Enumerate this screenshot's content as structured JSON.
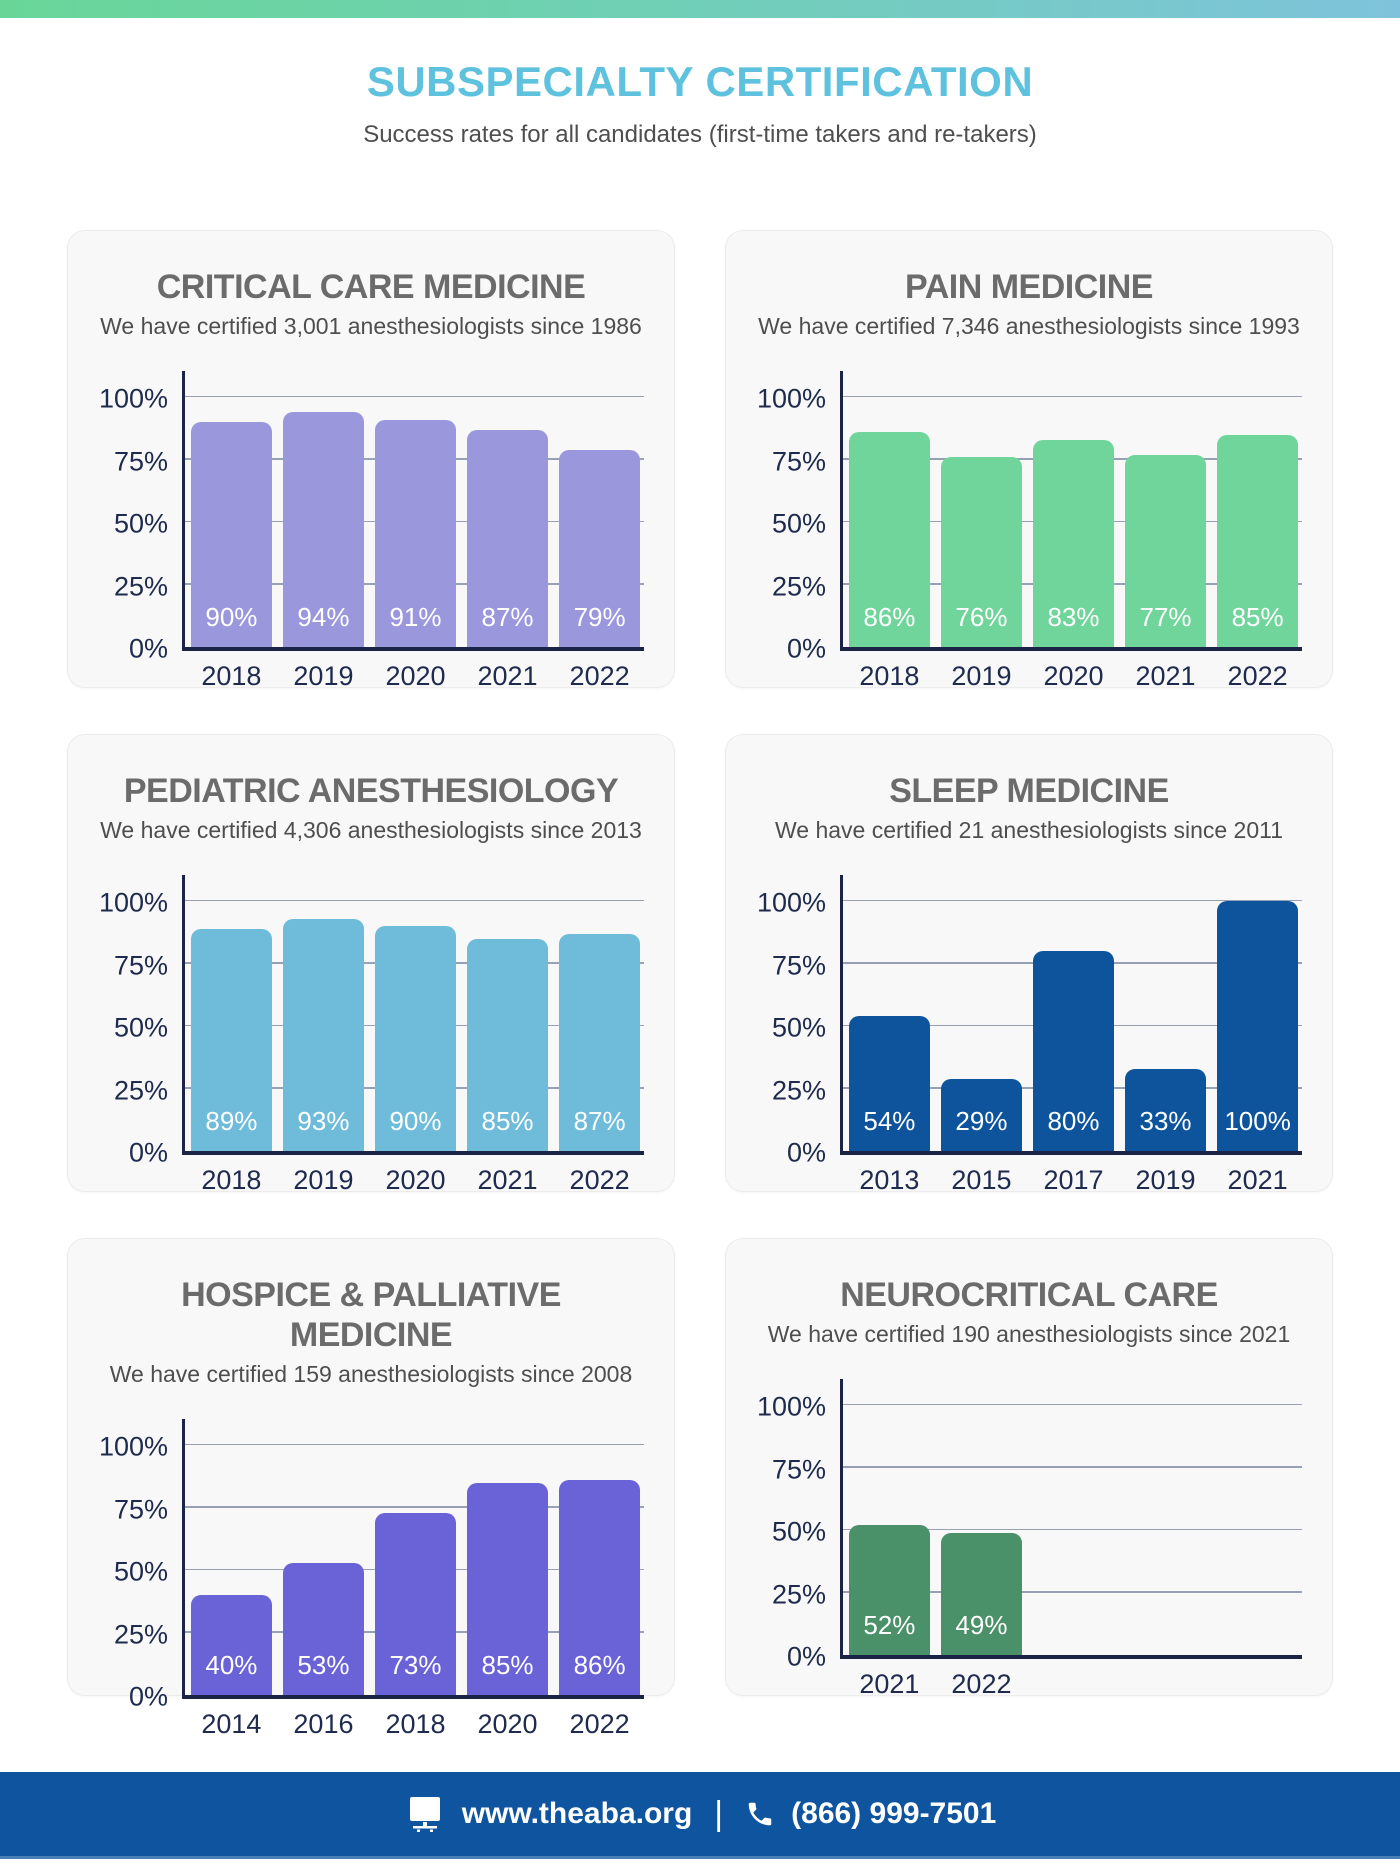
{
  "header": {
    "title": "SUBSPECIALTY CERTIFICATION",
    "subtitle": "Success rates for all candidates (first-time takers and re-takers)"
  },
  "chart_data": [
    {
      "type": "bar",
      "title": "CRITICAL CARE MEDICINE",
      "subtitle": "We have certified 3,001 anesthesiologists since 1986",
      "categories": [
        "2018",
        "2019",
        "2020",
        "2021",
        "2022"
      ],
      "values": [
        90,
        94,
        91,
        87,
        79
      ],
      "data_labels": [
        "90%",
        "94%",
        "91%",
        "87%",
        "79%"
      ],
      "bar_color": "#9b97dd",
      "y_ticks": [
        "100%",
        "75%",
        "50%",
        "25%",
        "0%"
      ],
      "ylim": [
        0,
        100
      ],
      "xlabel": "",
      "ylabel": "",
      "grid": true,
      "slots": 5
    },
    {
      "type": "bar",
      "title": "PAIN MEDICINE",
      "subtitle": "We have certified 7,346 anesthesiologists since 1993",
      "categories": [
        "2018",
        "2019",
        "2020",
        "2021",
        "2022"
      ],
      "values": [
        86,
        76,
        83,
        77,
        85
      ],
      "data_labels": [
        "86%",
        "76%",
        "83%",
        "77%",
        "85%"
      ],
      "bar_color": "#6fd59a",
      "y_ticks": [
        "100%",
        "75%",
        "50%",
        "25%",
        "0%"
      ],
      "ylim": [
        0,
        100
      ],
      "xlabel": "",
      "ylabel": "",
      "grid": true,
      "slots": 5
    },
    {
      "type": "bar",
      "title": "PEDIATRIC ANESTHESIOLOGY",
      "subtitle": "We have certified 4,306 anesthesiologists since 2013",
      "categories": [
        "2018",
        "2019",
        "2020",
        "2021",
        "2022"
      ],
      "values": [
        89,
        93,
        90,
        85,
        87
      ],
      "data_labels": [
        "89%",
        "93%",
        "90%",
        "85%",
        "87%"
      ],
      "bar_color": "#6ebcda",
      "y_ticks": [
        "100%",
        "75%",
        "50%",
        "25%",
        "0%"
      ],
      "ylim": [
        0,
        100
      ],
      "xlabel": "",
      "ylabel": "",
      "grid": true,
      "slots": 5
    },
    {
      "type": "bar",
      "title": "SLEEP MEDICINE",
      "subtitle": "We have certified 21 anesthesiologists since 2011",
      "categories": [
        "2013",
        "2015",
        "2017",
        "2019",
        "2021"
      ],
      "values": [
        54,
        29,
        80,
        33,
        100
      ],
      "data_labels": [
        "54%",
        "29%",
        "80%",
        "33%",
        "100%"
      ],
      "bar_color": "#0d549d",
      "y_ticks": [
        "100%",
        "75%",
        "50%",
        "25%",
        "0%"
      ],
      "ylim": [
        0,
        100
      ],
      "xlabel": "",
      "ylabel": "",
      "grid": true,
      "slots": 5
    },
    {
      "type": "bar",
      "title": "HOSPICE & PALLIATIVE MEDICINE",
      "subtitle": "We have certified 159 anesthesiologists since 2008",
      "categories": [
        "2014",
        "2016",
        "2018",
        "2020",
        "2022"
      ],
      "values": [
        40,
        53,
        73,
        85,
        86
      ],
      "data_labels": [
        "40%",
        "53%",
        "73%",
        "85%",
        "86%"
      ],
      "bar_color": "#6a62d7",
      "y_ticks": [
        "100%",
        "75%",
        "50%",
        "25%",
        "0%"
      ],
      "ylim": [
        0,
        100
      ],
      "xlabel": "",
      "ylabel": "",
      "grid": true,
      "slots": 5
    },
    {
      "type": "bar",
      "title": "NEUROCRITICAL CARE",
      "subtitle": "We have certified 190 anesthesiologists since 2021",
      "categories": [
        "2021",
        "2022"
      ],
      "values": [
        52,
        49
      ],
      "data_labels": [
        "52%",
        "49%"
      ],
      "bar_color": "#4a9068",
      "y_ticks": [
        "100%",
        "75%",
        "50%",
        "25%",
        "0%"
      ],
      "ylim": [
        0,
        100
      ],
      "xlabel": "",
      "ylabel": "",
      "grid": true,
      "slots": 5
    }
  ],
  "footer": {
    "website": "www.theaba.org",
    "separator": "|",
    "phone": "(866) 999-7501",
    "icons": {
      "website": "monitor-icon",
      "phone": "phone-icon"
    }
  },
  "colors": {
    "accent_title": "#5ec2df",
    "gradient_left": "#69d698",
    "gradient_right": "#7ec3db",
    "card_bg": "#f8f8f8",
    "card_border": "#ececec",
    "heading_gray": "#6b6b6b",
    "subtext_gray": "#4e4e4e",
    "axis_text": "#1e2a4e",
    "axis_line": "#1b2445",
    "grid_line": "#97a1b4",
    "bar_label_text": "#ffffff",
    "footer_bg": "#0f549e",
    "footer_text": "#ffffff"
  }
}
